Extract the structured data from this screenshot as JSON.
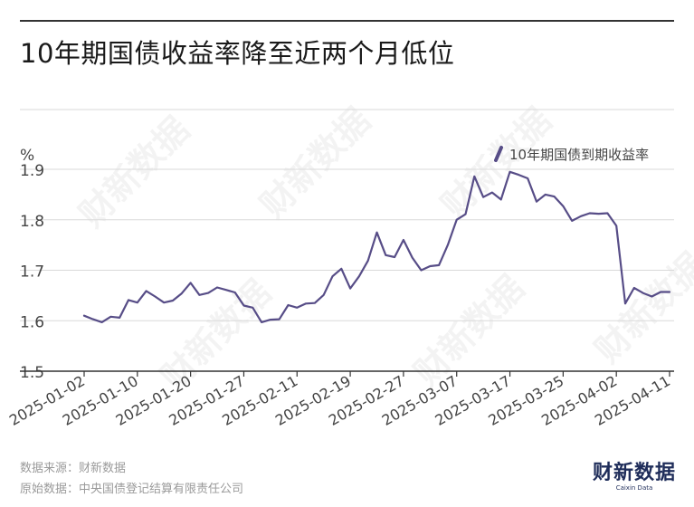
{
  "title": "10年期国债收益率降至近两个月低位",
  "unit": "%",
  "source_line": "数据来源：财新数据",
  "origin_line": "原始数据：中央国债登记结算有限责任公司",
  "brand": {
    "name_cn": "财新数据",
    "name_en": "Caixin Data"
  },
  "watermark_text": "财新数据",
  "colors": {
    "line": "#574d87",
    "grid": "#d9d9d9",
    "axis": "#333333",
    "brand": "#1f2d5a"
  },
  "chart_data": {
    "type": "line",
    "title": "10年期国债收益率降至近两个月低位",
    "ylabel": "%",
    "ylim": [
      1.5,
      1.9
    ],
    "yticks": [
      1.5,
      1.6,
      1.7,
      1.8,
      1.9
    ],
    "grid": true,
    "legend": "top-right",
    "xtick_labels": [
      "2025-01-02",
      "2025-01-10",
      "2025-01-20",
      "2025-01-27",
      "2025-02-11",
      "2025-02-19",
      "2025-02-27",
      "2025-03-07",
      "2025-03-17",
      "2025-03-25",
      "2025-04-02",
      "2025-04-11"
    ],
    "series": [
      {
        "name": "10年期国债到期收益率",
        "x": [
          "2025-01-02",
          "2025-01-03",
          "2025-01-06",
          "2025-01-07",
          "2025-01-08",
          "2025-01-09",
          "2025-01-10",
          "2025-01-13",
          "2025-01-14",
          "2025-01-15",
          "2025-01-16",
          "2025-01-17",
          "2025-01-20",
          "2025-01-21",
          "2025-01-22",
          "2025-01-23",
          "2025-01-24",
          "2025-01-26",
          "2025-01-27",
          "2025-02-05",
          "2025-02-06",
          "2025-02-07",
          "2025-02-08",
          "2025-02-10",
          "2025-02-11",
          "2025-02-12",
          "2025-02-13",
          "2025-02-14",
          "2025-02-17",
          "2025-02-18",
          "2025-02-19",
          "2025-02-20",
          "2025-02-21",
          "2025-02-24",
          "2025-02-25",
          "2025-02-26",
          "2025-02-27",
          "2025-02-28",
          "2025-03-03",
          "2025-03-04",
          "2025-03-05",
          "2025-03-06",
          "2025-03-07",
          "2025-03-10",
          "2025-03-11",
          "2025-03-12",
          "2025-03-13",
          "2025-03-14",
          "2025-03-17",
          "2025-03-18",
          "2025-03-19",
          "2025-03-20",
          "2025-03-21",
          "2025-03-24",
          "2025-03-25",
          "2025-03-26",
          "2025-03-27",
          "2025-03-28",
          "2025-03-31",
          "2025-04-01",
          "2025-04-02",
          "2025-04-03",
          "2025-04-07",
          "2025-04-08",
          "2025-04-09",
          "2025-04-10",
          "2025-04-11"
        ],
        "values": [
          1.61,
          1.603,
          1.597,
          1.608,
          1.606,
          1.641,
          1.636,
          1.659,
          1.648,
          1.636,
          1.64,
          1.654,
          1.675,
          1.651,
          1.655,
          1.666,
          1.661,
          1.656,
          1.63,
          1.626,
          1.597,
          1.602,
          1.603,
          1.631,
          1.626,
          1.634,
          1.635,
          1.651,
          1.688,
          1.703,
          1.664,
          1.688,
          1.719,
          1.775,
          1.73,
          1.726,
          1.76,
          1.725,
          1.7,
          1.708,
          1.71,
          1.75,
          1.8,
          1.811,
          1.886,
          1.845,
          1.854,
          1.84,
          1.895,
          1.889,
          1.882,
          1.836,
          1.85,
          1.846,
          1.827,
          1.798,
          1.807,
          1.813,
          1.812,
          1.813,
          1.788,
          1.634,
          1.665,
          1.655,
          1.648,
          1.657,
          1.657
        ]
      }
    ]
  }
}
